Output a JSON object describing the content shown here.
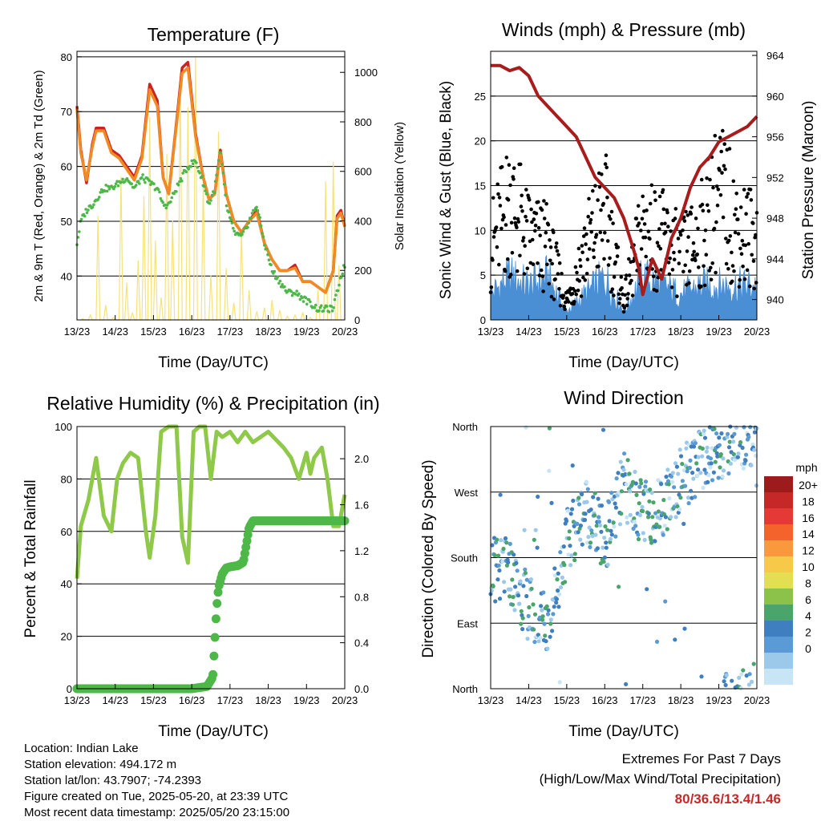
{
  "x_ticks": [
    "13/23",
    "14/23",
    "15/23",
    "16/23",
    "17/23",
    "18/23",
    "19/23",
    "20/23"
  ],
  "info": {
    "location": "Location: Indian Lake",
    "elevation": "Station elevation: 494.172 m",
    "latlon": "Station lat/lon: 43.7907; -74.2393",
    "created": "Figure created on Tue, 2025-05-20, at 23:39 UTC",
    "recent": "Most recent data timestamp: 2025/05/20 23:15:00"
  },
  "extremes": {
    "line1": "Extremes For Past 7 Days",
    "line2": "(High/Low/Max Wind/Total Precipitation)",
    "values": "80/36.6/13.4/1.46"
  },
  "chart_data": [
    {
      "type": "line",
      "title": "Temperature (F)",
      "xlabel": "Time (Day/UTC)",
      "ylabel": "2m & 9m T (Red, Orange) & 2m Td (Green)",
      "ylabel_right": "Solar Insolation (Yellow)",
      "ylim": [
        32,
        81
      ],
      "yticks": [
        40,
        50,
        60,
        70,
        80
      ],
      "ylim_right": [
        0,
        1085
      ],
      "yticks_right": [
        0,
        200,
        400,
        600,
        800,
        1000
      ],
      "x": [
        0,
        0.1,
        0.25,
        0.4,
        0.5,
        0.7,
        0.9,
        1.1,
        1.3,
        1.5,
        1.7,
        1.9,
        2.1,
        2.25,
        2.4,
        2.6,
        2.75,
        2.9,
        3.1,
        3.3,
        3.45,
        3.6,
        3.75,
        3.9,
        4.1,
        4.3,
        4.5,
        4.7,
        4.9,
        5.1,
        5.3,
        5.5,
        5.7,
        5.9,
        6.1,
        6.3,
        6.5,
        6.7,
        6.8,
        6.9,
        7.0
      ],
      "series": [
        {
          "name": "2m T",
          "color": "#cc2222",
          "values": [
            71,
            63,
            57,
            64,
            67,
            67,
            63,
            62,
            60,
            58,
            62,
            75,
            72,
            58,
            55,
            68,
            78,
            79,
            66,
            58,
            54,
            55,
            63,
            55,
            50,
            48,
            50,
            52,
            46,
            43,
            41,
            41,
            42,
            39,
            39,
            38,
            37,
            41,
            51,
            52,
            49
          ]
        },
        {
          "name": "9m T",
          "color": "#f08a24",
          "values": [
            70.5,
            62.5,
            57.5,
            63.5,
            66.5,
            66.5,
            62.5,
            61.5,
            59.5,
            57.5,
            61.5,
            74,
            71,
            58,
            55,
            67.5,
            77,
            78,
            65.5,
            58,
            54,
            55,
            62.5,
            55,
            50,
            48,
            50,
            51.5,
            46,
            43,
            41,
            41,
            41.5,
            39,
            39,
            38,
            37,
            41,
            50.5,
            51.5,
            49
          ]
        },
        {
          "name": "2m Td",
          "color": "#4db848",
          "values": [
            46,
            50,
            52,
            53,
            54,
            56,
            56,
            57,
            58,
            56,
            58,
            57,
            56,
            53,
            53,
            56,
            58,
            60,
            61,
            57,
            53,
            56,
            63,
            53,
            48,
            47,
            50,
            53,
            46,
            41,
            39,
            37,
            37,
            36,
            35,
            34,
            34,
            34,
            37,
            40,
            42
          ]
        }
      ],
      "solar": {
        "name": "Solar Insolation",
        "color": "#f7e27a",
        "x": [
          0.15,
          0.35,
          0.55,
          0.75,
          0.95,
          1.15,
          1.3,
          1.45,
          1.6,
          1.75,
          1.9,
          2.05,
          2.2,
          2.35,
          2.5,
          2.7,
          2.9,
          3.1,
          3.3,
          3.5,
          3.7,
          3.9,
          4.1,
          4.3,
          4.5,
          4.7,
          4.9,
          5.1,
          5.3,
          5.5,
          5.7,
          5.9,
          6.1,
          6.3,
          6.5,
          6.7,
          6.85
        ],
        "values": [
          5,
          20,
          420,
          60,
          10,
          580,
          150,
          30,
          240,
          500,
          820,
          320,
          90,
          670,
          400,
          1000,
          860,
          1060,
          560,
          180,
          760,
          210,
          70,
          360,
          120,
          35,
          50,
          80,
          40,
          15,
          20,
          30,
          10,
          120,
          560,
          640,
          220
        ]
      }
    },
    {
      "type": "scatter",
      "title": "Winds (mph) & Pressure (mb)",
      "xlabel": "Time (Day/UTC)",
      "ylabel": "Sonic Wind & Gust (Blue, Black)",
      "ylabel_right": "Station Pressure (Maroon)",
      "ylim": [
        0,
        30
      ],
      "yticks": [
        0,
        5,
        10,
        15,
        20,
        25
      ],
      "ylim_right": [
        938,
        964.4
      ],
      "yticks_right": [
        940,
        944,
        948,
        952,
        956,
        960,
        964
      ],
      "x": [
        0,
        0.5,
        1,
        1.5,
        2,
        2.5,
        3,
        3.5,
        4,
        4.5,
        5,
        5.5,
        6,
        6.5,
        7
      ],
      "series": [
        {
          "name": "Sonic Wind",
          "color": "#4a8fd4",
          "values": [
            3,
            5,
            4,
            5,
            1,
            3,
            5,
            1,
            5,
            4,
            3,
            4,
            4,
            4,
            4
          ]
        },
        {
          "name": "Gust",
          "color": "#000000",
          "values": [
            8,
            13,
            9,
            8,
            2,
            8,
            12,
            2,
            10,
            9,
            7,
            9,
            14,
            10,
            9
          ]
        },
        {
          "name": "Station Pressure",
          "color": "#a81c1c",
          "x": [
            0,
            0.25,
            0.5,
            0.75,
            1,
            1.25,
            1.5,
            1.75,
            2,
            2.25,
            2.5,
            2.75,
            3,
            3.25,
            3.5,
            3.75,
            3.9,
            4.0,
            4.25,
            4.5,
            4.75,
            5,
            5.25,
            5.5,
            5.75,
            6,
            6.25,
            6.5,
            6.75,
            7
          ],
          "values": [
            963,
            963,
            962.5,
            962.8,
            962,
            960,
            959,
            958,
            957,
            956,
            954,
            952,
            951,
            950,
            948,
            945,
            943,
            940.5,
            944,
            942,
            946,
            948,
            951,
            953,
            954,
            955.5,
            956,
            956.5,
            957,
            958
          ]
        }
      ]
    },
    {
      "type": "line",
      "title": "Relative Humidity (%) & Precipitation (in)",
      "xlabel": "Time (Day/UTC)",
      "ylabel": "Percent & Total Rainfall",
      "ylim": [
        0,
        100
      ],
      "yticks": [
        0,
        20,
        40,
        60,
        80,
        100
      ],
      "ylim_right": [
        0,
        2.28
      ],
      "yticks_right": [
        0.0,
        0.4,
        0.8,
        1.2,
        1.6,
        2.0
      ],
      "series": [
        {
          "name": "Relative Humidity",
          "color": "#8fc94a",
          "x": [
            0,
            0.1,
            0.3,
            0.5,
            0.7,
            0.9,
            1.05,
            1.2,
            1.4,
            1.6,
            1.8,
            1.9,
            2.05,
            2.2,
            2.4,
            2.6,
            2.75,
            2.9,
            3.05,
            3.2,
            3.35,
            3.5,
            3.65,
            3.8,
            4.0,
            4.2,
            4.4,
            4.6,
            4.8,
            5.0,
            5.2,
            5.4,
            5.6,
            5.8,
            6.0,
            6.1,
            6.2,
            6.4,
            6.55,
            6.7,
            6.85,
            7.0
          ],
          "values": [
            42,
            62,
            72,
            88,
            66,
            60,
            80,
            86,
            90,
            88,
            60,
            50,
            66,
            98,
            100,
            100,
            58,
            48,
            98,
            100,
            100,
            80,
            98,
            96,
            98,
            94,
            98,
            94,
            96,
            98,
            95,
            92,
            88,
            80,
            90,
            82,
            88,
            92,
            80,
            62,
            62,
            74
          ]
        },
        {
          "name": "Total Precipitation",
          "color": "#4db848",
          "x": [
            0,
            1,
            2,
            3,
            3.4,
            3.55,
            3.6,
            3.65,
            3.7,
            3.8,
            3.9,
            4.0,
            4.2,
            4.35,
            4.5,
            4.6,
            5,
            6,
            7
          ],
          "values": [
            0,
            0,
            0,
            0,
            0.02,
            0.1,
            0.4,
            0.7,
            0.88,
            1.0,
            1.05,
            1.06,
            1.07,
            1.1,
            1.4,
            1.46,
            1.46,
            1.46,
            1.46
          ]
        }
      ]
    },
    {
      "type": "scatter",
      "title": "Wind Direction",
      "xlabel": "Time (Day/UTC)",
      "ylabel": "Direction (Colored By Speed)",
      "ylim": [
        0,
        360
      ],
      "yticks": [
        "North",
        "East",
        "South",
        "West",
        "North"
      ],
      "colorbar": {
        "title": "mph",
        "labels": [
          "20+",
          "18",
          "16",
          "14",
          "12",
          "10",
          "8",
          "6",
          "4",
          "2",
          "0"
        ],
        "colors": [
          "#9e1b1b",
          "#c62828",
          "#e53935",
          "#f4632b",
          "#f89a3c",
          "#f7c948",
          "#e2e052",
          "#8cc24a",
          "#4aa56a",
          "#3f7fbf",
          "#5a9bd5",
          "#9cc9ea",
          "#c7e5f5"
        ]
      },
      "points_speed_range": [
        0,
        13.4
      ]
    }
  ]
}
